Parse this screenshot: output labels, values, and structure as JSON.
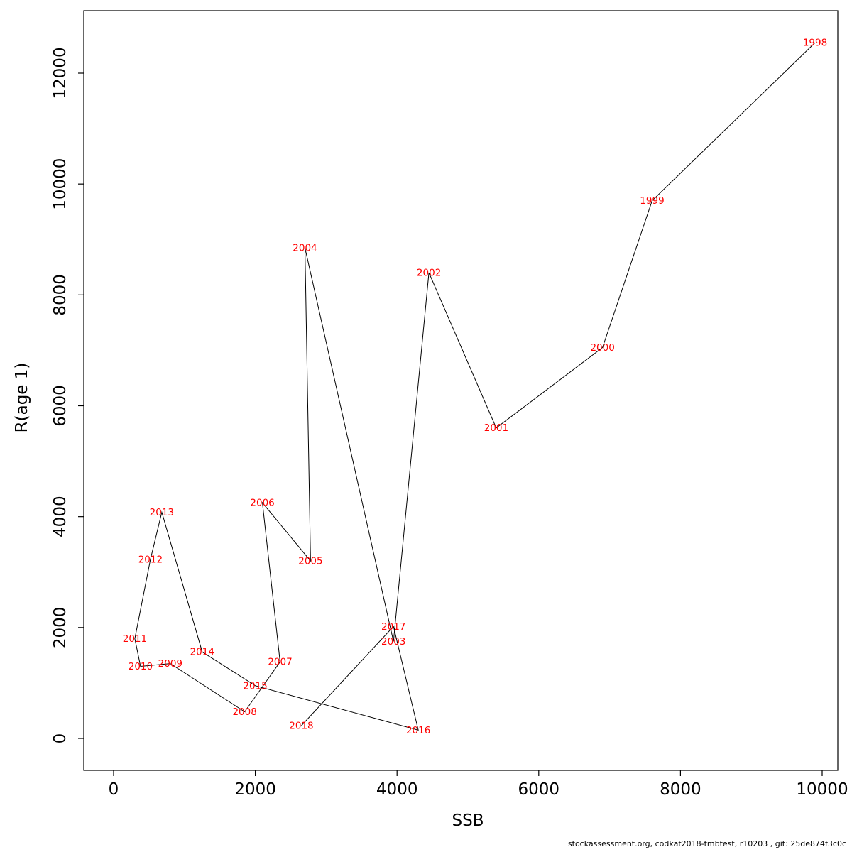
{
  "footer": "stockassessment.org, codkat2018-tmbtest, r10203 , git: 25de874f3c0c",
  "colors": {
    "line": "#000000",
    "label": "#ff0000",
    "axis": "#000000",
    "background": "#ffffff",
    "footer_text": "#000000"
  },
  "chart_data": {
    "type": "scatter",
    "title": "",
    "xlabel": "SSB",
    "ylabel": "R(age 1)",
    "xlim": [
      0,
      10000
    ],
    "ylim": [
      0,
      12000
    ],
    "grid": false,
    "legend": "none",
    "connected_chronologically": true,
    "x_ticks": [
      0,
      2000,
      4000,
      6000,
      8000,
      10000
    ],
    "y_ticks": [
      0,
      2000,
      4000,
      6000,
      8000,
      10000,
      12000
    ],
    "points": [
      {
        "label": "1998",
        "x": 9900,
        "y": 12550
      },
      {
        "label": "1999",
        "x": 7600,
        "y": 9700
      },
      {
        "label": "2000",
        "x": 6900,
        "y": 7050
      },
      {
        "label": "2001",
        "x": 5400,
        "y": 5600
      },
      {
        "label": "2002",
        "x": 4450,
        "y": 8400
      },
      {
        "label": "2003",
        "x": 3950,
        "y": 1750
      },
      {
        "label": "2004",
        "x": 2700,
        "y": 8850
      },
      {
        "label": "2005",
        "x": 2780,
        "y": 3200
      },
      {
        "label": "2006",
        "x": 2100,
        "y": 4250
      },
      {
        "label": "2007",
        "x": 2350,
        "y": 1380
      },
      {
        "label": "2008",
        "x": 1850,
        "y": 480
      },
      {
        "label": "2009",
        "x": 800,
        "y": 1350
      },
      {
        "label": "2010",
        "x": 380,
        "y": 1300
      },
      {
        "label": "2011",
        "x": 300,
        "y": 1800
      },
      {
        "label": "2012",
        "x": 520,
        "y": 3230
      },
      {
        "label": "2013",
        "x": 680,
        "y": 4080
      },
      {
        "label": "2014",
        "x": 1250,
        "y": 1560
      },
      {
        "label": "2015",
        "x": 2000,
        "y": 950
      },
      {
        "label": "2016",
        "x": 4300,
        "y": 150
      },
      {
        "label": "2017",
        "x": 3950,
        "y": 2020
      },
      {
        "label": "2018",
        "x": 2650,
        "y": 230
      }
    ]
  }
}
